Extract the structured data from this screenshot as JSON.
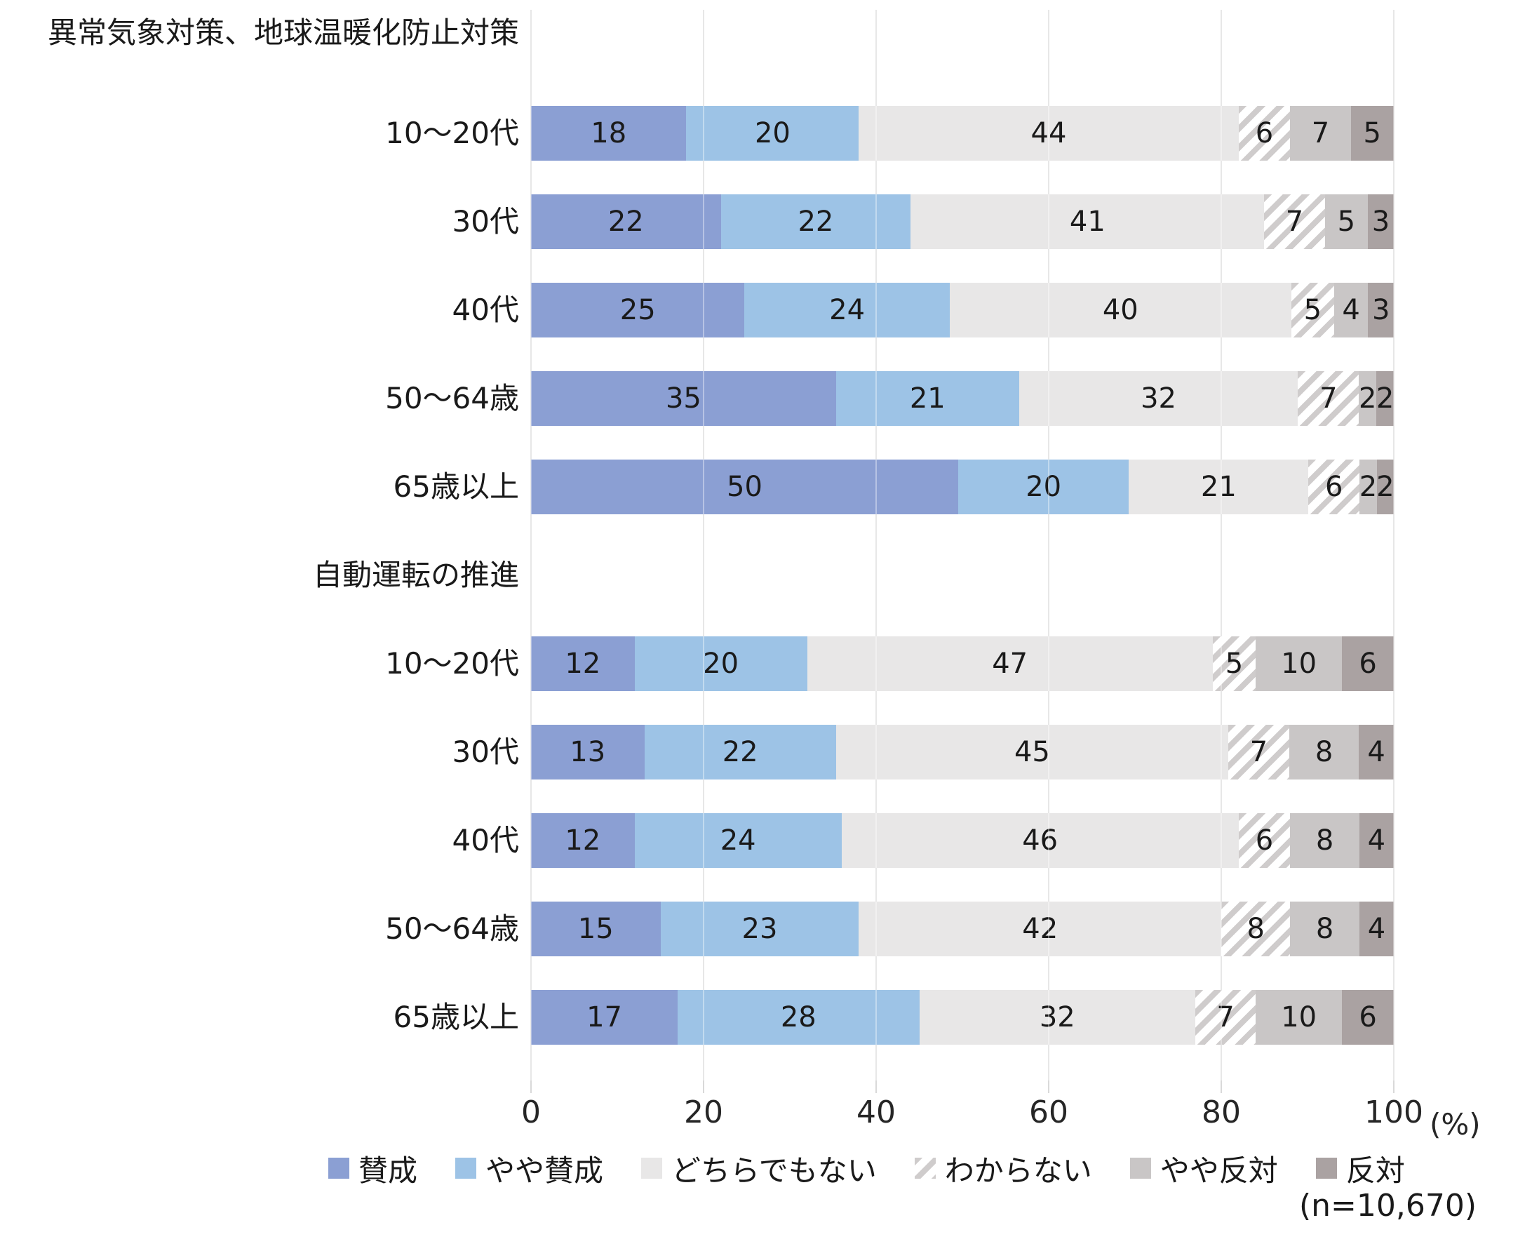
{
  "chart_data": {
    "type": "bar",
    "stacked": true,
    "orientation": "horizontal",
    "title": "",
    "unit_label": "(%)",
    "note": "(n=10,670)",
    "x_axis": {
      "ticks": [
        0,
        20,
        40,
        60,
        80,
        100
      ],
      "range": [
        0,
        100
      ],
      "grid": true
    },
    "series_legend": [
      {
        "name": "賛成",
        "color": "#8B9FD3",
        "pattern": "solid"
      },
      {
        "name": "やや賛成",
        "color": "#9DC3E6",
        "pattern": "solid"
      },
      {
        "name": "どちらでもない",
        "color": "#E8E7E7",
        "pattern": "solid"
      },
      {
        "name": "わからない",
        "color": "#CFCCCC",
        "pattern": "diagonal-hatch",
        "hatch_bg": "#FFFFFF"
      },
      {
        "name": "やや反対",
        "color": "#C9C6C6",
        "pattern": "solid"
      },
      {
        "name": "反対",
        "color": "#AAA2A2",
        "pattern": "solid"
      }
    ],
    "groups": [
      {
        "title": "異常気象対策、地球温暖化防止対策",
        "rows": [
          {
            "label": "10〜20代",
            "values": [
              18,
              20,
              44,
              6,
              7,
              5
            ]
          },
          {
            "label": "30代",
            "values": [
              22,
              22,
              41,
              7,
              5,
              3
            ]
          },
          {
            "label": "40代",
            "values": [
              25,
              24,
              40,
              5,
              4,
              3
            ]
          },
          {
            "label": "50〜64歳",
            "values": [
              35,
              21,
              32,
              7,
              2,
              2
            ]
          },
          {
            "label": "65歳以上",
            "values": [
              50,
              20,
              21,
              6,
              2,
              2
            ]
          }
        ]
      },
      {
        "title": "自動運転の推進",
        "rows": [
          {
            "label": "10〜20代",
            "values": [
              12,
              20,
              47,
              5,
              10,
              6
            ]
          },
          {
            "label": "30代",
            "values": [
              13,
              22,
              45,
              7,
              8,
              4
            ]
          },
          {
            "label": "40代",
            "values": [
              12,
              24,
              46,
              6,
              8,
              4
            ]
          },
          {
            "label": "50〜64歳",
            "values": [
              15,
              23,
              42,
              8,
              8,
              4
            ]
          },
          {
            "label": "65歳以上",
            "values": [
              17,
              28,
              32,
              7,
              10,
              6
            ]
          }
        ]
      }
    ],
    "colors": {
      "gridline": "#D9D9D9",
      "label_text": "#1A1A1A",
      "axis_text": "#262626"
    }
  }
}
